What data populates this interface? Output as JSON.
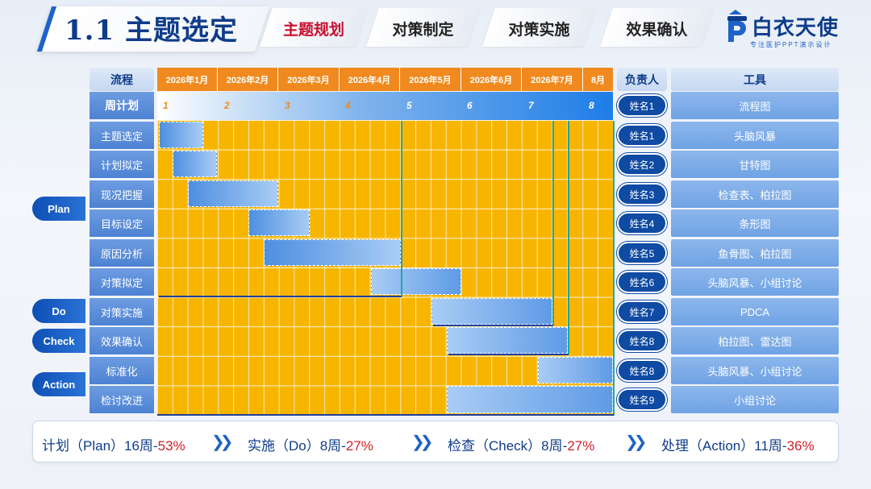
{
  "header": {
    "title": "1.1 主题选定",
    "tabs": [
      {
        "label": "主题规划",
        "active": true
      },
      {
        "label": "对策制定",
        "active": false
      },
      {
        "label": "对策实施",
        "active": false
      },
      {
        "label": "效果确认",
        "active": false
      }
    ],
    "brand": {
      "logo_letter": "P",
      "name": "白衣天使",
      "tagline": "专注医护PPT演示设计"
    }
  },
  "table": {
    "col_flow": "流程",
    "col_owner": "负责人",
    "col_tool": "工具",
    "months": [
      "2026年1月",
      "2026年2月",
      "2026年3月",
      "2026年4月",
      "2026年5月",
      "2026年6月",
      "2026年7月",
      "8月"
    ],
    "week_label": "周计划",
    "week_numbers": [
      "1",
      "2",
      "3",
      "4",
      "5",
      "6",
      "7",
      "8"
    ],
    "rows": [
      {
        "step": "主题选定",
        "owner": "姓名1",
        "tool": "头脑风暴"
      },
      {
        "step": "计划拟定",
        "owner": "姓名2",
        "tool": "甘特图"
      },
      {
        "step": "现况把握",
        "owner": "姓名3",
        "tool": "检查表、柏拉图"
      },
      {
        "step": "目标设定",
        "owner": "姓名4",
        "tool": "条形图"
      },
      {
        "step": "原因分析",
        "owner": "姓名5",
        "tool": "鱼骨图、柏拉图"
      },
      {
        "step": "对策拟定",
        "owner": "姓名6",
        "tool": "头脑风暴、小组讨论"
      },
      {
        "step": "对策实施",
        "owner": "姓名7",
        "tool": "PDCA"
      },
      {
        "step": "效果确认",
        "owner": "姓名8",
        "tool": "柏拉图、雷达图"
      },
      {
        "step": "标准化",
        "owner": "姓名8",
        "tool": "头脑风暴、小组讨论"
      },
      {
        "step": "检讨改进",
        "owner": "姓名9",
        "tool": "小组讨论"
      }
    ],
    "week_owner": "姓名1",
    "week_tool": "流程图",
    "phases": {
      "plan": "Plan",
      "do": "Do",
      "check": "Check",
      "action": "Action"
    }
  },
  "summary": {
    "plan_text": "计划（Plan）16周-",
    "plan_pct": "53%",
    "do_text": "实施（Do）8周-",
    "do_pct": "27%",
    "check_text": "检查（Check）8周-",
    "check_pct": "27%",
    "action_text": "处理（Action）11周-",
    "action_pct": "36%",
    "separator": "»"
  },
  "colors": {
    "accent": "#0f3c8a",
    "orange": "#f08a1f",
    "gantt": "#f7b500",
    "percent": "#d0202a"
  }
}
